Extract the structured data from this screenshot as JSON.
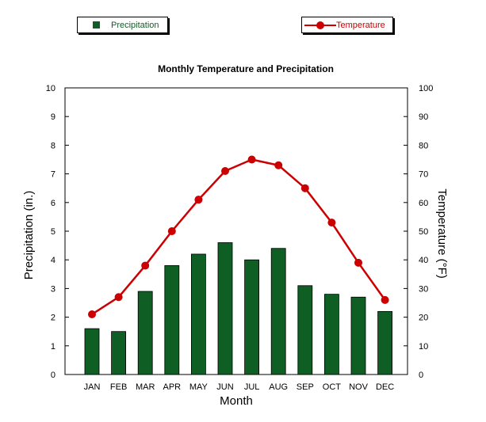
{
  "legend": {
    "precip_label": "Precipitation",
    "temp_label": "Temperature"
  },
  "colors": {
    "bar": "#0f5e23",
    "line": "#cc0000",
    "precip_legend_text": "#0f5e23",
    "temp_legend_text": "#cc0000"
  },
  "chart_data": {
    "type": "bar",
    "title": "Monthly Temperature and Precipitation",
    "xlabel": "Month",
    "ylabel": "Precipitation (in.)",
    "y2label": "Temperature (°F)",
    "categories": [
      "JAN",
      "FEB",
      "MAR",
      "APR",
      "MAY",
      "JUN",
      "JUL",
      "AUG",
      "SEP",
      "OCT",
      "NOV",
      "DEC"
    ],
    "ylim": [
      0,
      10
    ],
    "y2lim": [
      0,
      100
    ],
    "yticks": [
      "0",
      "1",
      "2",
      "3",
      "4",
      "5",
      "6",
      "7",
      "8",
      "9",
      "10"
    ],
    "y2ticks": [
      "0",
      "10",
      "20",
      "30",
      "40",
      "50",
      "60",
      "70",
      "80",
      "90",
      "100"
    ],
    "series": [
      {
        "name": "Precipitation",
        "type": "bar",
        "axis": "left",
        "values": [
          1.6,
          1.5,
          2.9,
          3.8,
          4.2,
          4.6,
          4.0,
          4.4,
          3.1,
          2.8,
          2.7,
          2.2
        ]
      },
      {
        "name": "Temperature",
        "type": "line",
        "axis": "right",
        "values": [
          21,
          27,
          38,
          50,
          61,
          71,
          75,
          73,
          65,
          53,
          39,
          26
        ]
      }
    ],
    "legend_position": "top",
    "grid": false
  }
}
